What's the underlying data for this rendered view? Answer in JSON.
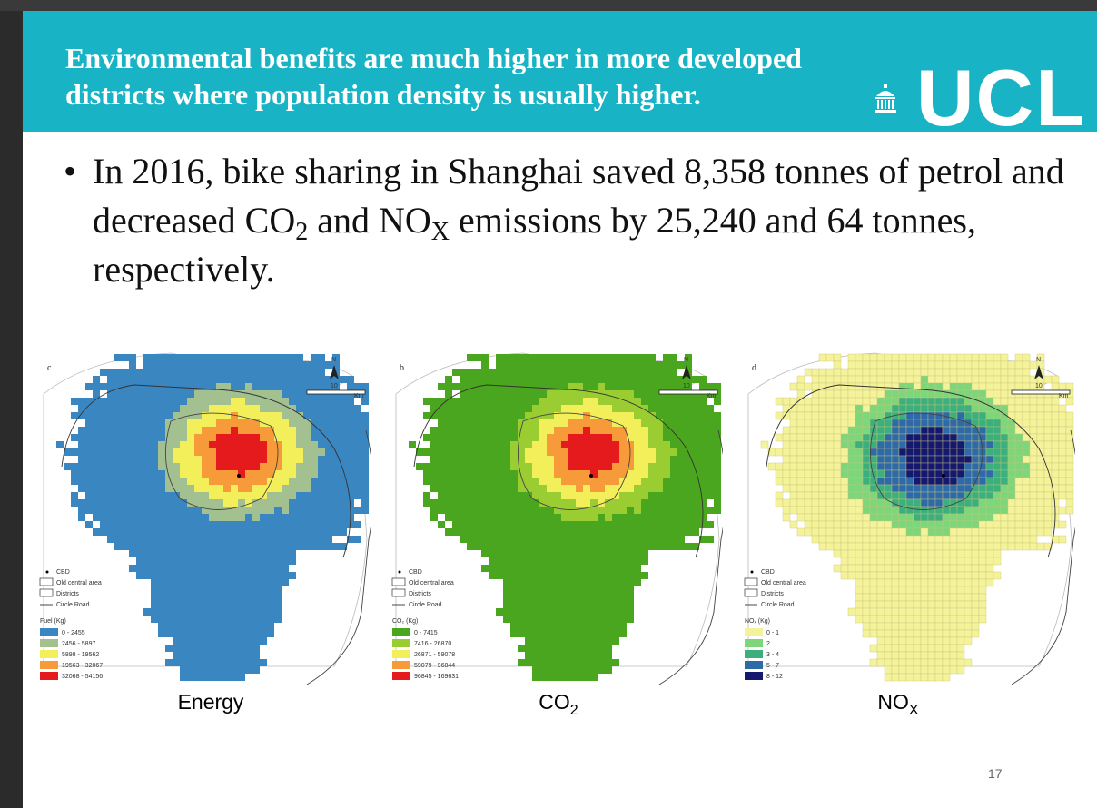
{
  "slide": {
    "title": "Environmental benefits are much higher in more developed districts where population density is usually higher.",
    "logo_text": "UCL",
    "bullet": {
      "text_1": "In 2016, bike sharing in Shanghai saved 8,358 tonnes of petrol and decreased CO",
      "sub_1": "2",
      "text_2": " and NO",
      "sub_2": "X",
      "text_3": " emissions by 25,240 and 64 tonnes, respectively."
    },
    "page_number": "17"
  },
  "maps": [
    {
      "panel_letter": "c",
      "caption": "Energy",
      "caption_sub": "",
      "scale_value": "10",
      "scale_unit": "Km",
      "north": "N",
      "legend_static": [
        "CBD",
        "Old central area",
        "Districts",
        "Circle Road"
      ],
      "legend_title": "Fuel (Kg)",
      "legend": [
        "0 - 2455",
        "2456 - 5897",
        "5898 - 19562",
        "19563 - 32067",
        "32068 - 54156"
      ],
      "colors": [
        "#3a86c0",
        "#a3c090",
        "#f3ef5a",
        "#f79a3a",
        "#e41a1c"
      ]
    },
    {
      "panel_letter": "b",
      "caption": "CO",
      "caption_sub": "2",
      "scale_value": "10",
      "scale_unit": "Km",
      "north": "N",
      "legend_static": [
        "CBD",
        "Old central area",
        "Districts",
        "Circle Road"
      ],
      "legend_title": "CO₂ (Kg)",
      "legend": [
        "0 - 7415",
        "7416 - 26870",
        "26871 - 59078",
        "59079 - 96844",
        "96845 - 169631"
      ],
      "colors": [
        "#4aa51f",
        "#9acd32",
        "#f3ef5a",
        "#f79a3a",
        "#e41a1c"
      ]
    },
    {
      "panel_letter": "d",
      "caption": "NO",
      "caption_sub": "X",
      "scale_value": "10",
      "scale_unit": "Km",
      "north": "N",
      "legend_static": [
        "CBD",
        "Old central area",
        "Districts",
        "Circle Road"
      ],
      "legend_title": "NOₓ (Kg)",
      "legend": [
        "0 - 1",
        "2",
        "3 - 4",
        "5 - 7",
        "8 - 12"
      ],
      "colors": [
        "#f5f39a",
        "#7ed67a",
        "#3cb07c",
        "#2e6aa8",
        "#14186e"
      ]
    }
  ]
}
